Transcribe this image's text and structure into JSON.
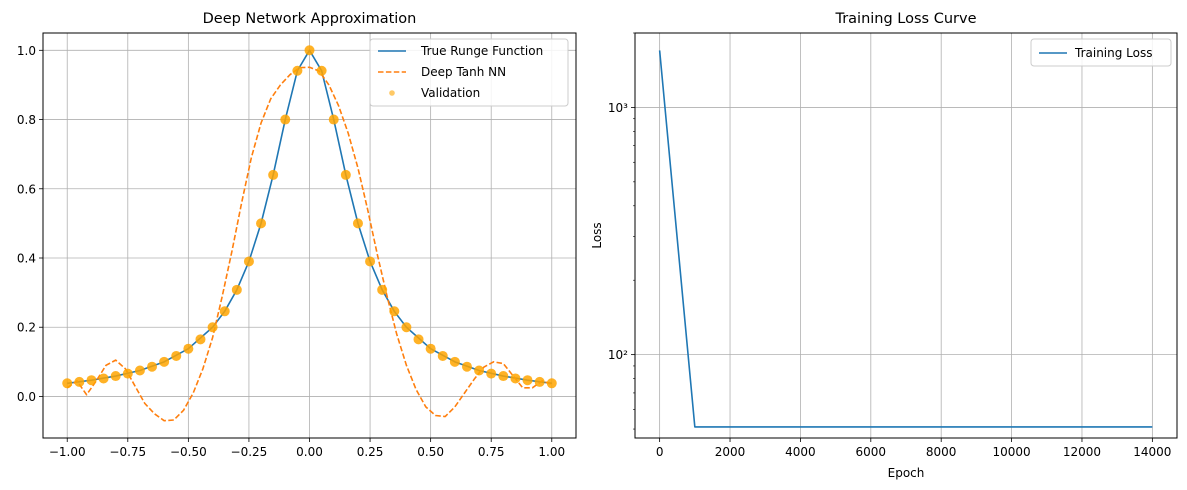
{
  "chart_data": [
    {
      "type": "line",
      "title": "Deep Network Approximation",
      "xlabel": "",
      "ylabel": "",
      "xlim": [
        -1.1,
        1.1
      ],
      "ylim": [
        -0.12,
        1.05
      ],
      "x_ticks": [
        -1.0,
        -0.75,
        -0.5,
        -0.25,
        0.0,
        0.25,
        0.5,
        0.75,
        1.0
      ],
      "x_tick_labels": [
        "−1.00",
        "−0.75",
        "−0.50",
        "−0.25",
        "0.00",
        "0.25",
        "0.50",
        "0.75",
        "1.00"
      ],
      "y_ticks": [
        0.0,
        0.2,
        0.4,
        0.6,
        0.8,
        1.0
      ],
      "y_tick_labels": [
        "0.0",
        "0.2",
        "0.4",
        "0.6",
        "0.8",
        "1.0"
      ],
      "grid": true,
      "legend_position": "top-right",
      "series": [
        {
          "name": "True Runge Function",
          "style": "line",
          "color": "#1f77b4",
          "x": [
            -1.0,
            -0.9,
            -0.8,
            -0.7,
            -0.6,
            -0.5,
            -0.4,
            -0.35,
            -0.3,
            -0.25,
            -0.2,
            -0.15,
            -0.1,
            -0.05,
            0.0,
            0.05,
            0.1,
            0.15,
            0.2,
            0.25,
            0.3,
            0.35,
            0.4,
            0.5,
            0.6,
            0.7,
            0.8,
            0.9,
            1.0
          ],
          "y": [
            0.038,
            0.047,
            0.059,
            0.075,
            0.1,
            0.138,
            0.2,
            0.246,
            0.308,
            0.39,
            0.5,
            0.64,
            0.8,
            0.941,
            1.0,
            0.941,
            0.8,
            0.64,
            0.5,
            0.39,
            0.308,
            0.246,
            0.2,
            0.138,
            0.1,
            0.075,
            0.059,
            0.047,
            0.038
          ]
        },
        {
          "name": "Deep Tanh NN",
          "style": "dashed",
          "color": "#ff7f0e",
          "x": [
            -1.0,
            -0.96,
            -0.92,
            -0.88,
            -0.84,
            -0.8,
            -0.76,
            -0.72,
            -0.68,
            -0.64,
            -0.6,
            -0.56,
            -0.52,
            -0.48,
            -0.44,
            -0.4,
            -0.36,
            -0.32,
            -0.28,
            -0.24,
            -0.2,
            -0.16,
            -0.12,
            -0.08,
            -0.04,
            0.0,
            0.04,
            0.08,
            0.12,
            0.16,
            0.2,
            0.24,
            0.28,
            0.32,
            0.36,
            0.4,
            0.44,
            0.48,
            0.52,
            0.56,
            0.6,
            0.64,
            0.68,
            0.72,
            0.76,
            0.8,
            0.84,
            0.88,
            0.92,
            0.96,
            1.0
          ],
          "y": [
            0.025,
            0.045,
            0.005,
            0.045,
            0.09,
            0.105,
            0.08,
            0.03,
            -0.02,
            -0.05,
            -0.07,
            -0.068,
            -0.04,
            0.01,
            0.08,
            0.17,
            0.29,
            0.42,
            0.56,
            0.69,
            0.79,
            0.86,
            0.9,
            0.93,
            0.95,
            0.951,
            0.94,
            0.9,
            0.84,
            0.76,
            0.66,
            0.54,
            0.41,
            0.29,
            0.18,
            0.09,
            0.02,
            -0.03,
            -0.055,
            -0.058,
            -0.03,
            0.01,
            0.05,
            0.085,
            0.1,
            0.095,
            0.06,
            0.025,
            0.025,
            0.045,
            0.035
          ]
        },
        {
          "name": "Validation",
          "style": "scatter",
          "color": "#ffa500",
          "x": [
            -1.0,
            -0.95,
            -0.9,
            -0.85,
            -0.8,
            -0.75,
            -0.7,
            -0.65,
            -0.6,
            -0.55,
            -0.5,
            -0.45,
            -0.4,
            -0.35,
            -0.3,
            -0.25,
            -0.2,
            -0.15,
            -0.1,
            -0.05,
            0.0,
            0.05,
            0.1,
            0.15,
            0.2,
            0.25,
            0.3,
            0.35,
            0.4,
            0.45,
            0.5,
            0.55,
            0.6,
            0.65,
            0.7,
            0.75,
            0.8,
            0.85,
            0.9,
            0.95,
            1.0
          ],
          "y": [
            0.038,
            0.042,
            0.047,
            0.052,
            0.059,
            0.066,
            0.075,
            0.086,
            0.1,
            0.117,
            0.138,
            0.165,
            0.2,
            0.246,
            0.308,
            0.39,
            0.5,
            0.64,
            0.8,
            0.941,
            1.0,
            0.941,
            0.8,
            0.64,
            0.5,
            0.39,
            0.308,
            0.246,
            0.2,
            0.165,
            0.138,
            0.117,
            0.1,
            0.086,
            0.075,
            0.066,
            0.059,
            0.052,
            0.047,
            0.042,
            0.038
          ]
        }
      ]
    },
    {
      "type": "line",
      "title": "Training Loss Curve",
      "xlabel": "Epoch",
      "ylabel": "Loss",
      "yscale": "log",
      "xlim": [
        -700,
        14700
      ],
      "ylim": [
        46,
        2000
      ],
      "x_ticks": [
        0,
        2000,
        4000,
        6000,
        8000,
        10000,
        12000,
        14000
      ],
      "x_tick_labels": [
        "0",
        "2000",
        "4000",
        "6000",
        "8000",
        "10000",
        "12000",
        "14000"
      ],
      "y_ticks": [
        100,
        1000
      ],
      "y_tick_labels": [
        "10²",
        "10³"
      ],
      "grid": true,
      "legend_position": "top-right",
      "series": [
        {
          "name": "Training Loss",
          "style": "line",
          "color": "#1f77b4",
          "x": [
            0,
            1000,
            2000,
            3000,
            4000,
            5000,
            6000,
            7000,
            8000,
            9000,
            10000,
            11000,
            12000,
            13000,
            14000
          ],
          "y": [
            1700,
            51,
            51,
            51,
            51,
            51,
            51,
            51,
            51,
            51,
            51,
            51,
            51,
            51,
            51
          ]
        }
      ]
    }
  ]
}
